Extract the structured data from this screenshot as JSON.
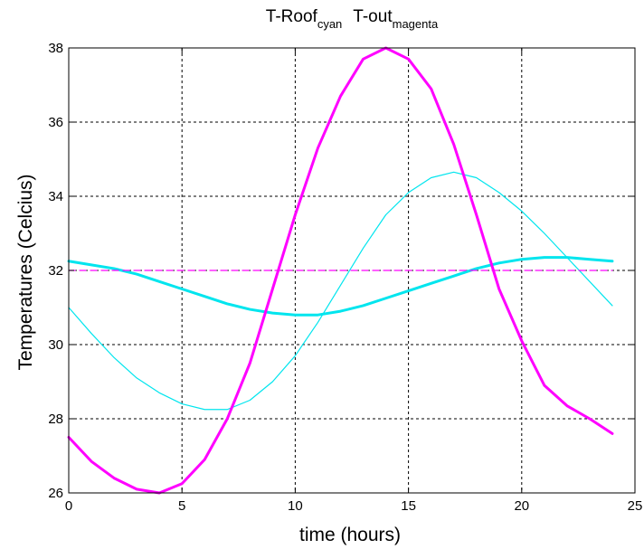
{
  "chart_data": {
    "type": "line",
    "title": {
      "parts": [
        {
          "main": "T-Roof",
          "sub": "cyan"
        },
        {
          "main": "T-out",
          "sub": "magenta"
        }
      ]
    },
    "xlabel": "time (hours)",
    "ylabel": "Temperatures (Celcius)",
    "xlim": [
      0,
      25
    ],
    "ylim": [
      26,
      38
    ],
    "xticks": [
      0,
      5,
      10,
      15,
      20,
      25
    ],
    "yticks": [
      26,
      28,
      30,
      32,
      34,
      36,
      38
    ],
    "grid": true,
    "grid_style": "dotted",
    "series": [
      {
        "color": "#00e5ee",
        "style": "thick",
        "x": [
          0,
          1,
          2,
          3,
          4,
          5,
          6,
          7,
          8,
          9,
          10,
          11,
          12,
          13,
          14,
          15,
          16,
          17,
          18,
          19,
          20,
          21,
          22,
          23,
          24
        ],
        "y": [
          32.25,
          32.15,
          32.05,
          31.9,
          31.7,
          31.5,
          31.3,
          31.1,
          30.95,
          30.85,
          30.8,
          30.8,
          30.9,
          31.05,
          31.25,
          31.45,
          31.65,
          31.85,
          32.05,
          32.2,
          32.3,
          32.35,
          32.35,
          32.3,
          32.25
        ]
      },
      {
        "color": "#00e5ee",
        "style": "thin",
        "x": [
          0,
          1,
          2,
          3,
          4,
          5,
          6,
          7,
          8,
          9,
          10,
          11,
          12,
          13,
          14,
          15,
          16,
          17,
          18,
          19,
          20,
          21,
          22,
          23,
          24
        ],
        "y": [
          31.0,
          30.3,
          29.65,
          29.1,
          28.7,
          28.4,
          28.25,
          28.25,
          28.5,
          29.0,
          29.7,
          30.6,
          31.6,
          32.6,
          33.5,
          34.1,
          34.5,
          34.65,
          34.5,
          34.1,
          33.6,
          33.0,
          32.35,
          31.7,
          31.05
        ]
      },
      {
        "color": "#ff00ff",
        "style": "thick",
        "x": [
          0,
          1,
          2,
          3,
          4,
          5,
          6,
          7,
          8,
          9,
          10,
          11,
          12,
          13,
          14,
          15,
          16,
          17,
          18,
          19,
          20,
          21,
          22,
          23,
          24
        ],
        "y": [
          27.5,
          26.85,
          26.4,
          26.1,
          26.0,
          26.25,
          26.9,
          28.0,
          29.5,
          31.5,
          33.5,
          35.3,
          36.7,
          37.7,
          38.0,
          37.7,
          36.9,
          35.4,
          33.5,
          31.5,
          30.1,
          28.9,
          28.35,
          28.0,
          27.6
        ]
      },
      {
        "color": "#ff00ff",
        "style": "dashed",
        "x": [
          0,
          24
        ],
        "y": [
          32.0,
          32.0
        ]
      }
    ]
  }
}
